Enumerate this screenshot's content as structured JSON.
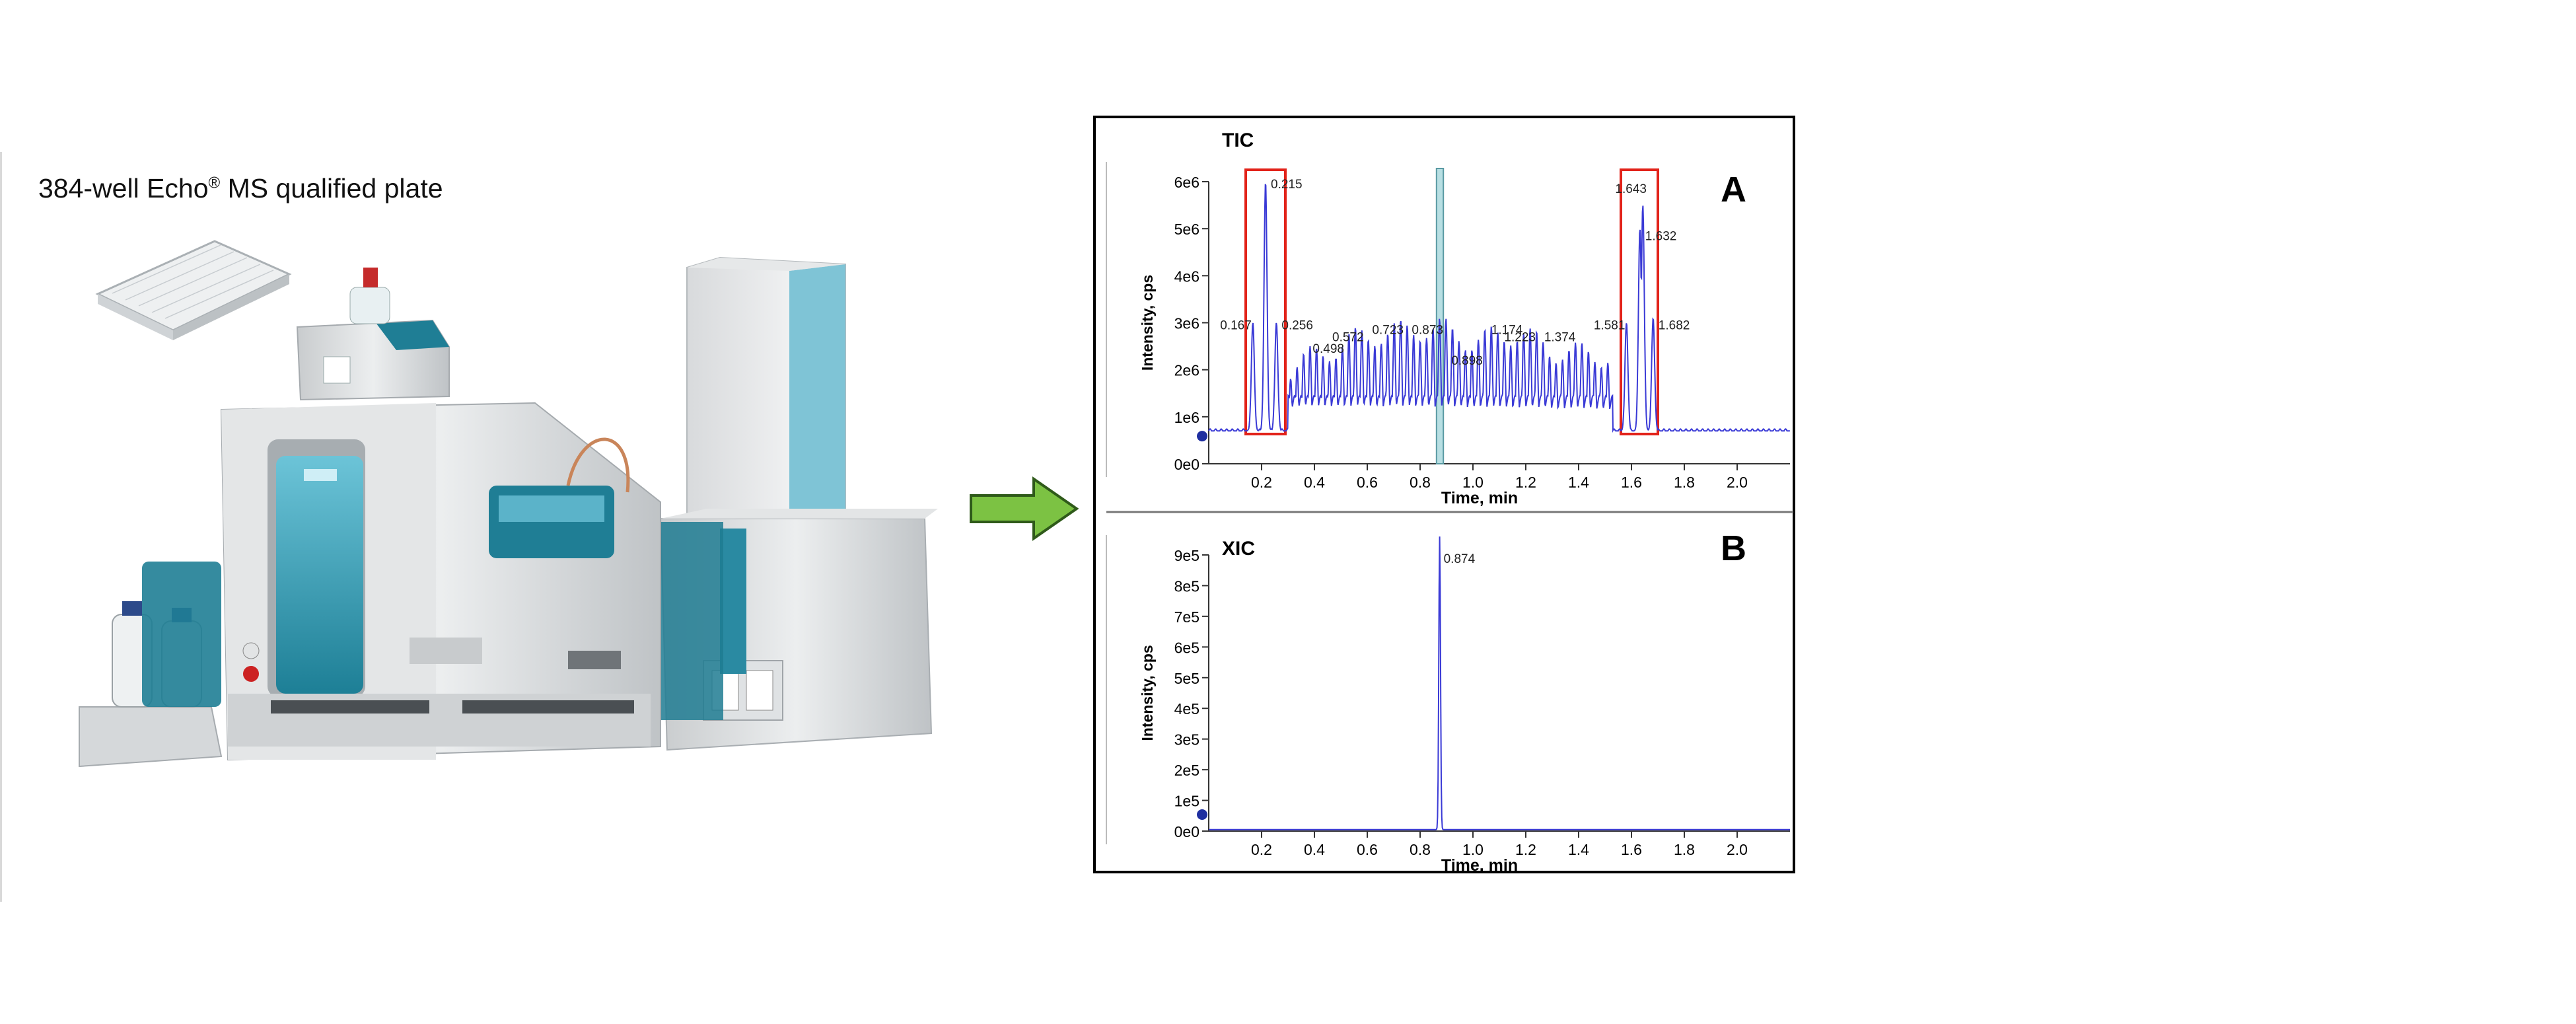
{
  "plate": {
    "label_main": "384-well Echo",
    "label_sup": "®",
    "label_rest": " MS qualified plate"
  },
  "instrument": {
    "description": "Echo MS system with autosampler and mass spectrometer",
    "colors": {
      "body": "#d7d9db",
      "accent": "#1e7c93",
      "accent_light": "#59b7cf",
      "arrow": "#7cc243"
    }
  },
  "arrow": {
    "color": "#7cc243",
    "outline": "#2f5a1a"
  },
  "chart_data": [
    {
      "type": "line",
      "title": "TIC",
      "panel_label": "A",
      "xlabel": "Time, min",
      "ylabel": "Intensity, cps",
      "xlim": [
        0,
        2.2
      ],
      "ylim": [
        0,
        6000000
      ],
      "x_ticks": [
        "0.2",
        "0.4",
        "0.6",
        "0.8",
        "1.0",
        "1.2",
        "1.4",
        "1.6",
        "1.8",
        "2.0"
      ],
      "y_ticks": [
        "0e0",
        "1e6",
        "2e6",
        "3e6",
        "4e6",
        "5e6",
        "6e6"
      ],
      "series": [
        {
          "values_description": "periodic peaks",
          "color": "#3a3ad6"
        }
      ],
      "peaks_top": [
        {
          "x": 0.167,
          "y": 3000000
        },
        {
          "x": 0.215,
          "y": 6000000
        },
        {
          "x": 0.256,
          "y": 3000000
        },
        {
          "x": 1.581,
          "y": 3000000
        },
        {
          "x": 1.643,
          "y": 5500000
        },
        {
          "x": 1.632,
          "y": 5000000
        },
        {
          "x": 1.682,
          "y": 3100000
        }
      ],
      "mid_envelope": [
        {
          "x": 0.3,
          "y": 2000000
        },
        {
          "x": 0.4,
          "y": 2300000
        },
        {
          "x": 0.498,
          "y": 2500000
        },
        {
          "x": 0.572,
          "y": 2700000
        },
        {
          "x": 0.7,
          "y": 2800000
        },
        {
          "x": 0.873,
          "y": 2900000
        },
        {
          "x": 1.0,
          "y": 2600000
        },
        {
          "x": 1.174,
          "y": 2800000
        },
        {
          "x": 1.3,
          "y": 2400000
        },
        {
          "x": 1.5,
          "y": 2300000
        }
      ],
      "annotations": [
        "0.167",
        "0.215",
        "0.256",
        "0.498",
        "0.572",
        "0.723",
        "0.873",
        "0.898",
        "1.174",
        "1.223",
        "1.374",
        "1.581",
        "1.643",
        "1.632",
        "1.682"
      ],
      "highlight_regions": [
        {
          "type": "red-box",
          "x0": 0.14,
          "x1": 0.29
        },
        {
          "type": "red-box",
          "x0": 1.56,
          "x1": 1.7
        },
        {
          "type": "teal-band",
          "x0": 0.862,
          "x1": 0.888
        }
      ],
      "baseline": 700000
    },
    {
      "type": "line",
      "title": "XIC",
      "panel_label": "B",
      "xlabel": "Time, min",
      "ylabel": "Intensity, cps",
      "xlim": [
        0,
        2.2
      ],
      "ylim": [
        0,
        900000
      ],
      "x_ticks": [
        "0.2",
        "0.4",
        "0.6",
        "0.8",
        "1.0",
        "1.2",
        "1.4",
        "1.6",
        "1.8",
        "2.0"
      ],
      "y_ticks": [
        "0e0",
        "1e5",
        "2e5",
        "3e5",
        "4e5",
        "5e5",
        "6e5",
        "7e5",
        "8e5",
        "9e5"
      ],
      "peaks": [
        {
          "x": 0.874,
          "y": 960000,
          "label": "0.874"
        }
      ],
      "series": [
        {
          "color": "#3a3ad6"
        }
      ]
    }
  ]
}
